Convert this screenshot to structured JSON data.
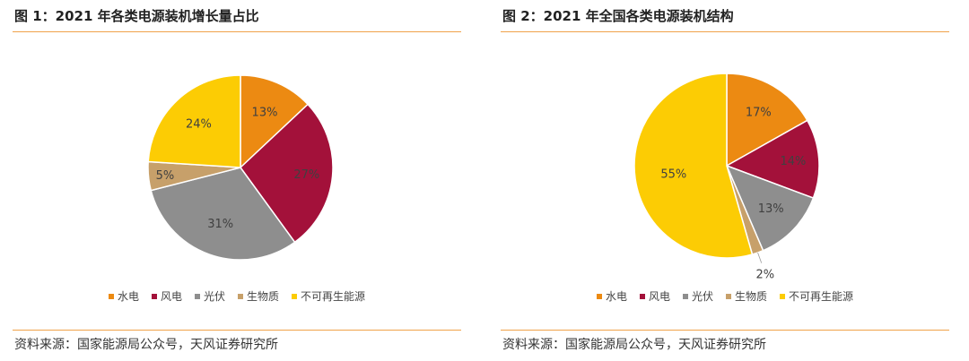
{
  "figures": [
    {
      "title": "图 1：2021 年各类电源装机增长量占比",
      "source": "资料来源：国家能源局公众号，天风证券研究所"
    },
    {
      "title": "图 2：2021 年全国各类电源装机结构",
      "source": "资料来源：国家能源局公众号，天风证券研究所"
    }
  ],
  "chart_data": [
    {
      "type": "pie",
      "title": "图 1：2021 年各类电源装机增长量占比",
      "categories": [
        "水电",
        "风电",
        "光伏",
        "生物质",
        "不可再生能源"
      ],
      "values": [
        13,
        27,
        31,
        5,
        24
      ],
      "labels": [
        "13%",
        "27%",
        "31%",
        "5%",
        "24%"
      ],
      "colors": [
        "#ec8a12",
        "#a3113a",
        "#8e8e8e",
        "#c7a06a",
        "#fccc04"
      ],
      "legend_position": "bottom"
    },
    {
      "type": "pie",
      "title": "图 2：2021 年全国各类电源装机结构",
      "categories": [
        "水电",
        "风电",
        "光伏",
        "生物质",
        "不可再生能源"
      ],
      "values": [
        17,
        14,
        13,
        2,
        55
      ],
      "labels": [
        "17%",
        "14%",
        "13%",
        "2%",
        "55%"
      ],
      "colors": [
        "#ec8a12",
        "#a3113a",
        "#8e8e8e",
        "#c7a06a",
        "#fccc04"
      ],
      "legend_position": "bottom"
    }
  ]
}
